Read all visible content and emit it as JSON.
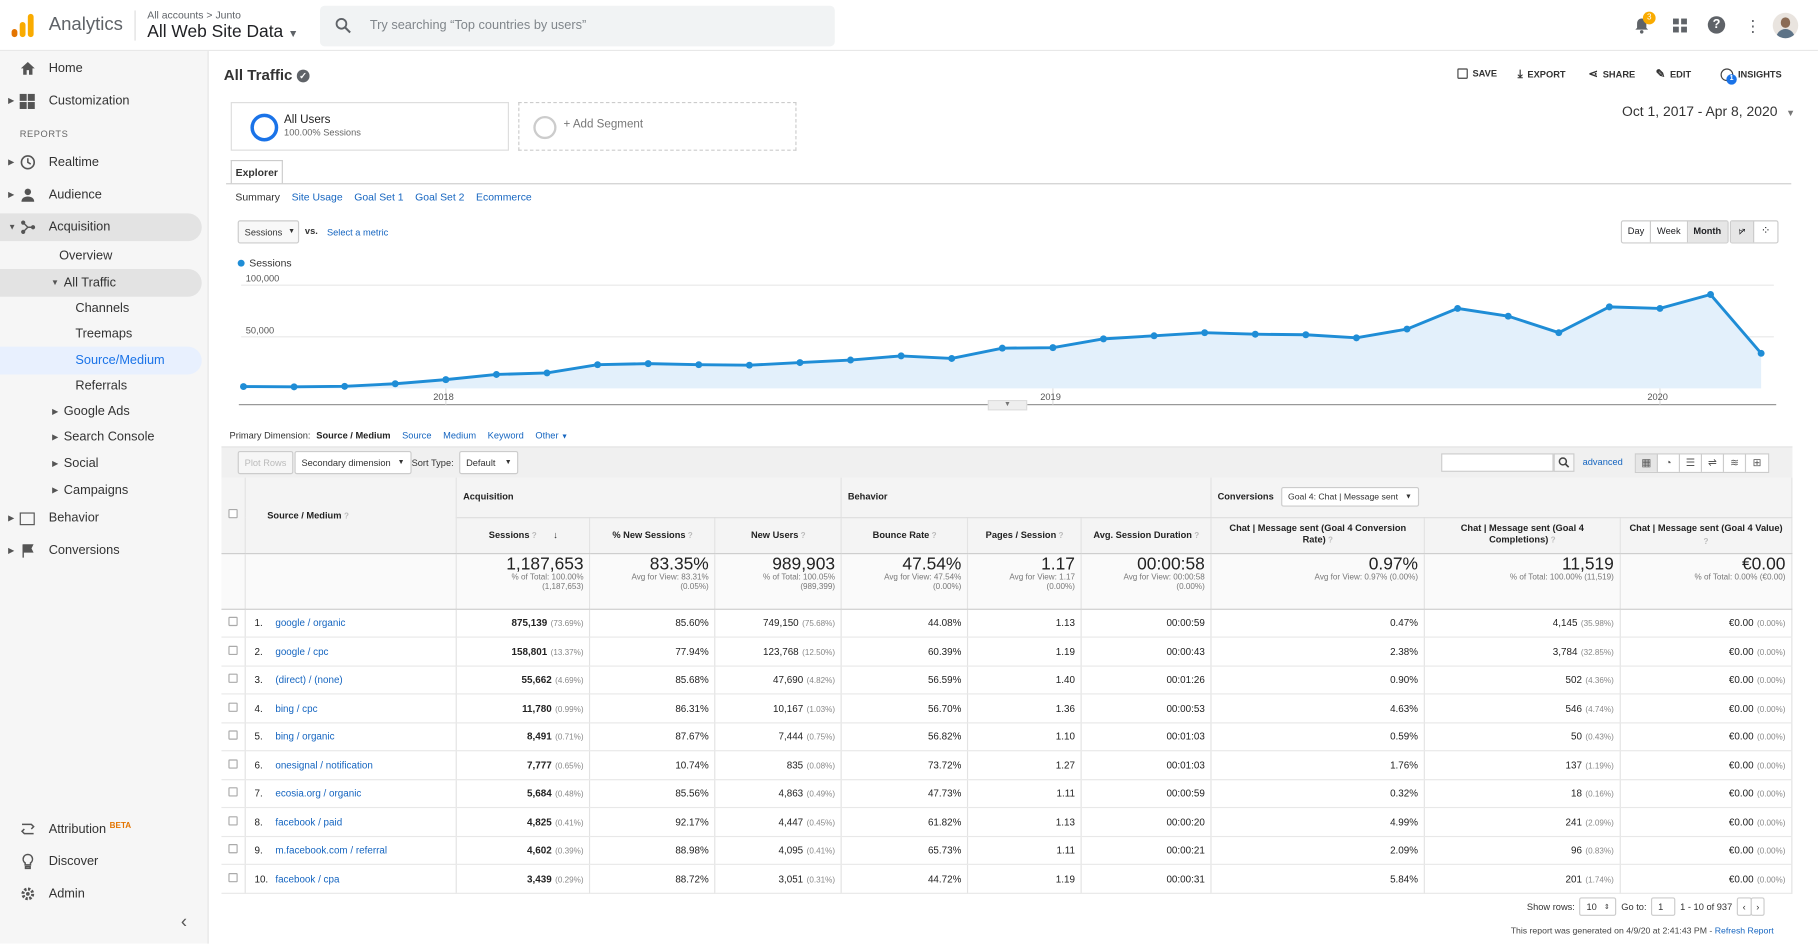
{
  "header": {
    "app_name": "Analytics",
    "breadcrumb_root": "All accounts",
    "breadcrumb_sep": ">",
    "breadcrumb_account": "Junto",
    "property": "All Web Site Data",
    "search_placeholder": "Try searching “Top countries by users”",
    "notification_count": "3"
  },
  "sidebar": {
    "home": "Home",
    "customization": "Customization",
    "reports_label": "REPORTS",
    "realtime": "Realtime",
    "audience": "Audience",
    "acquisition": "Acquisition",
    "overview": "Overview",
    "all_traffic": "All Traffic",
    "channels": "Channels",
    "treemaps": "Treemaps",
    "source_medium": "Source/Medium",
    "referrals": "Referrals",
    "google_ads": "Google Ads",
    "search_console": "Search Console",
    "social": "Social",
    "campaigns": "Campaigns",
    "behavior": "Behavior",
    "conversions": "Conversions",
    "attribution": "Attribution",
    "beta": "BETA",
    "discover": "Discover",
    "admin": "Admin",
    "collapse": "‹"
  },
  "report": {
    "title": "All Traffic",
    "actions": {
      "save": "SAVE",
      "export": "EXPORT",
      "share": "SHARE",
      "edit": "EDIT",
      "insights": "INSIGHTS"
    },
    "insights_badge": "1",
    "segment_name": "All Users",
    "segment_sub": "100.00% Sessions",
    "add_segment": "+ Add Segment",
    "date_range": "Oct 1, 2017 - Apr 8, 2020",
    "explorer_tab": "Explorer",
    "subtabs": [
      "Summary",
      "Site Usage",
      "Goal Set 1",
      "Goal Set 2",
      "Ecommerce"
    ],
    "metric_select": "Sessions",
    "vs": "vs.",
    "select_metric": "Select a metric",
    "granularity": [
      "Day",
      "Week",
      "Month"
    ],
    "legend_sessions": "Sessions",
    "primary_dimension_label": "Primary Dimension:",
    "primary_dimension": "Source / Medium",
    "dim_links": [
      "Source",
      "Medium",
      "Keyword",
      "Other"
    ],
    "plot_rows": "Plot Rows",
    "secondary_dimension": "Secondary dimension",
    "sort_type_label": "Sort Type:",
    "sort_type": "Default",
    "advanced": "advanced"
  },
  "chart_data": {
    "type": "line",
    "series": [
      {
        "name": "Sessions",
        "values": [
          1800,
          1500,
          2000,
          4500,
          8500,
          13500,
          15000,
          23000,
          24000,
          23000,
          22500,
          25000,
          27500,
          31500,
          29000,
          39000,
          39500,
          48000,
          51000,
          54000,
          52500,
          52000,
          49000,
          57500,
          77500,
          70000,
          54000,
          79000,
          77500,
          91000,
          34000
        ]
      }
    ],
    "x_tick_labels": [
      "2018",
      "2019",
      "2020"
    ],
    "y_tick_labels": [
      "100,000",
      "50,000"
    ],
    "ylim": [
      0,
      105000
    ],
    "grid": true,
    "color": "#1f8dd6",
    "fill": "#e3f0fb"
  },
  "table": {
    "col_source": "Source / Medium",
    "group_acquisition": "Acquisition",
    "group_behavior": "Behavior",
    "group_conversions": "Conversions",
    "goal_select": "Goal 4: Chat | Message sent",
    "columns": [
      "Sessions",
      "% New Sessions",
      "New Users",
      "Bounce Rate",
      "Pages / Session",
      "Avg. Session Duration",
      "Chat | Message sent (Goal 4 Conversion Rate)",
      "Chat | Message sent (Goal 4 Completions)",
      "Chat | Message sent (Goal 4 Value)"
    ],
    "totals": [
      {
        "value": "1,187,653",
        "sub1": "% of Total: 100.00%",
        "sub2": "(1,187,653)"
      },
      {
        "value": "83.35%",
        "sub1": "Avg for View: 83.31%",
        "sub2": "(0.05%)"
      },
      {
        "value": "989,903",
        "sub1": "% of Total: 100.05%",
        "sub2": "(989,399)"
      },
      {
        "value": "47.54%",
        "sub1": "Avg for View: 47.54%",
        "sub2": "(0.00%)"
      },
      {
        "value": "1.17",
        "sub1": "Avg for View: 1.17",
        "sub2": "(0.00%)"
      },
      {
        "value": "00:00:58",
        "sub1": "Avg for View: 00:00:58",
        "sub2": "(0.00%)"
      },
      {
        "value": "0.97%",
        "sub1": "Avg for View: 0.97% (0.00%)",
        "sub2": ""
      },
      {
        "value": "11,519",
        "sub1": "% of Total: 100.00% (11,519)",
        "sub2": ""
      },
      {
        "value": "€0.00",
        "sub1": "% of Total: 0.00% (€0.00)",
        "sub2": ""
      }
    ],
    "rows": [
      {
        "n": "1.",
        "src": "google / organic",
        "sessions": "875,139",
        "sp": "(73.69%)",
        "newpct": "85.60%",
        "nu": "749,150",
        "nup": "(75.68%)",
        "br": "44.08%",
        "pps": "1.13",
        "dur": "00:00:59",
        "cr": "0.47%",
        "comp": "4,145",
        "compp": "(35.98%)",
        "val": "€0.00",
        "valp": "(0.00%)"
      },
      {
        "n": "2.",
        "src": "google / cpc",
        "sessions": "158,801",
        "sp": "(13.37%)",
        "newpct": "77.94%",
        "nu": "123,768",
        "nup": "(12.50%)",
        "br": "60.39%",
        "pps": "1.19",
        "dur": "00:00:43",
        "cr": "2.38%",
        "comp": "3,784",
        "compp": "(32.85%)",
        "val": "€0.00",
        "valp": "(0.00%)"
      },
      {
        "n": "3.",
        "src": "(direct) / (none)",
        "sessions": "55,662",
        "sp": "(4.69%)",
        "newpct": "85.68%",
        "nu": "47,690",
        "nup": "(4.82%)",
        "br": "56.59%",
        "pps": "1.40",
        "dur": "00:01:26",
        "cr": "0.90%",
        "comp": "502",
        "compp": "(4.36%)",
        "val": "€0.00",
        "valp": "(0.00%)"
      },
      {
        "n": "4.",
        "src": "bing / cpc",
        "sessions": "11,780",
        "sp": "(0.99%)",
        "newpct": "86.31%",
        "nu": "10,167",
        "nup": "(1.03%)",
        "br": "56.70%",
        "pps": "1.36",
        "dur": "00:00:53",
        "cr": "4.63%",
        "comp": "546",
        "compp": "(4.74%)",
        "val": "€0.00",
        "valp": "(0.00%)"
      },
      {
        "n": "5.",
        "src": "bing / organic",
        "sessions": "8,491",
        "sp": "(0.71%)",
        "newpct": "87.67%",
        "nu": "7,444",
        "nup": "(0.75%)",
        "br": "56.82%",
        "pps": "1.10",
        "dur": "00:01:03",
        "cr": "0.59%",
        "comp": "50",
        "compp": "(0.43%)",
        "val": "€0.00",
        "valp": "(0.00%)"
      },
      {
        "n": "6.",
        "src": "onesignal / notification",
        "sessions": "7,777",
        "sp": "(0.65%)",
        "newpct": "10.74%",
        "nu": "835",
        "nup": "(0.08%)",
        "br": "73.72%",
        "pps": "1.27",
        "dur": "00:01:03",
        "cr": "1.76%",
        "comp": "137",
        "compp": "(1.19%)",
        "val": "€0.00",
        "valp": "(0.00%)"
      },
      {
        "n": "7.",
        "src": "ecosia.org / organic",
        "sessions": "5,684",
        "sp": "(0.48%)",
        "newpct": "85.56%",
        "nu": "4,863",
        "nup": "(0.49%)",
        "br": "47.73%",
        "pps": "1.11",
        "dur": "00:00:59",
        "cr": "0.32%",
        "comp": "18",
        "compp": "(0.16%)",
        "val": "€0.00",
        "valp": "(0.00%)"
      },
      {
        "n": "8.",
        "src": "facebook / paid",
        "sessions": "4,825",
        "sp": "(0.41%)",
        "newpct": "92.17%",
        "nu": "4,447",
        "nup": "(0.45%)",
        "br": "61.82%",
        "pps": "1.13",
        "dur": "00:00:20",
        "cr": "4.99%",
        "comp": "241",
        "compp": "(2.09%)",
        "val": "€0.00",
        "valp": "(0.00%)"
      },
      {
        "n": "9.",
        "src": "m.facebook.com / referral",
        "sessions": "4,602",
        "sp": "(0.39%)",
        "newpct": "88.98%",
        "nu": "4,095",
        "nup": "(0.41%)",
        "br": "65.73%",
        "pps": "1.11",
        "dur": "00:00:21",
        "cr": "2.09%",
        "comp": "96",
        "compp": "(0.83%)",
        "val": "€0.00",
        "valp": "(0.00%)"
      },
      {
        "n": "10.",
        "src": "facebook / cpa",
        "sessions": "3,439",
        "sp": "(0.29%)",
        "newpct": "88.72%",
        "nu": "3,051",
        "nup": "(0.31%)",
        "br": "44.72%",
        "pps": "1.19",
        "dur": "00:00:31",
        "cr": "5.84%",
        "comp": "201",
        "compp": "(1.74%)",
        "val": "€0.00",
        "valp": "(0.00%)"
      }
    ]
  },
  "footer": {
    "show_rows_label": "Show rows:",
    "show_rows": "10",
    "goto_label": "Go to:",
    "goto": "1",
    "range": "1 - 10 of 937",
    "generated": "This report was generated on 4/9/20 at 2:41:43 PM -",
    "refresh": "Refresh Report"
  }
}
